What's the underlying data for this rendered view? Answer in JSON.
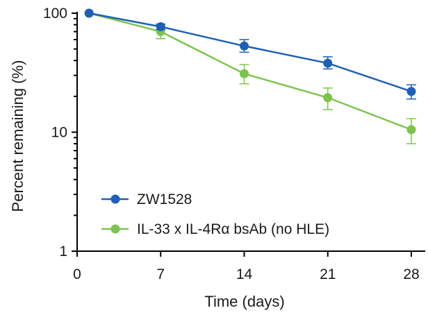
{
  "chart_data": {
    "type": "line",
    "xlabel": "Time (days)",
    "ylabel": "Percent remaining (%)",
    "x_ticks": [
      0,
      7,
      14,
      21,
      28
    ],
    "y_scale": "log",
    "ylim": [
      1,
      100
    ],
    "y_ticks": [
      1,
      10,
      100
    ],
    "xlim": [
      0,
      28
    ],
    "grid": false,
    "legend_position": "bottom-left",
    "series": [
      {
        "name": "ZW1528",
        "color": "#1f5fb4",
        "x": [
          1,
          7,
          14,
          21,
          28
        ],
        "y": [
          100,
          77,
          53,
          38,
          22
        ],
        "err_low": [
          0,
          4,
          6,
          4,
          3
        ],
        "err_high": [
          0,
          4,
          7,
          5,
          3
        ]
      },
      {
        "name": "IL-33 x IL-4Rα bsAb (no HLE)",
        "color": "#7cc44f",
        "x": [
          1,
          7,
          14,
          21,
          28
        ],
        "y": [
          100,
          70,
          31,
          19.5,
          10.5
        ],
        "err_low": [
          0,
          9,
          5.5,
          4,
          2.5
        ],
        "err_high": [
          0,
          8,
          6,
          4,
          2.5
        ]
      }
    ]
  }
}
